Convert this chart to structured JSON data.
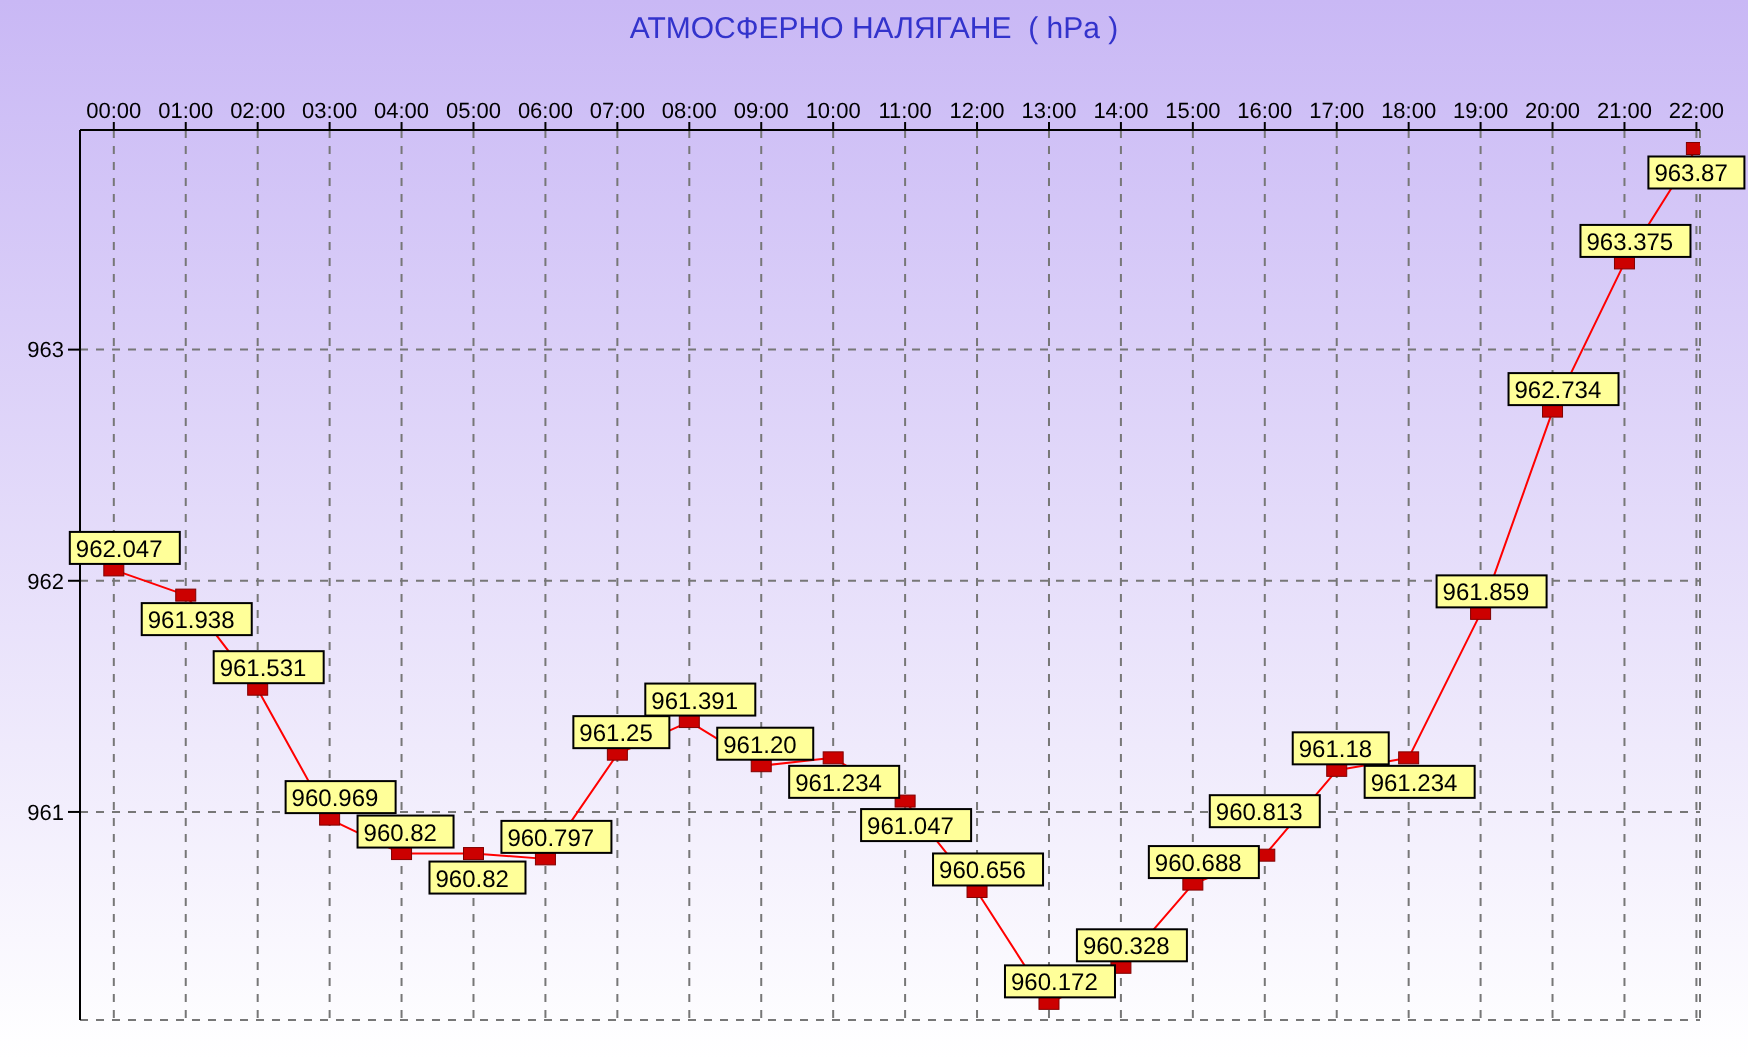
{
  "chart_data": {
    "type": "line",
    "title": "АТМОСФЕРНО НАЛЯГАНЕ  ( hPa )",
    "categories": [
      "00:00",
      "01:00",
      "02:00",
      "03:00",
      "04:00",
      "05:00",
      "06:00",
      "07:00",
      "08:00",
      "09:00",
      "10:00",
      "11:00",
      "12:00",
      "13:00",
      "14:00",
      "15:00",
      "16:00",
      "17:00",
      "18:00",
      "19:00",
      "20:00",
      "21:00",
      "22:00"
    ],
    "series": [
      {
        "color": "#ff0000",
        "values": [
          962.047,
          961.938,
          961.531,
          960.969,
          960.82,
          960.82,
          960.797,
          961.25,
          961.391,
          961.2,
          961.234,
          961.047,
          960.656,
          960.172,
          960.328,
          960.688,
          960.813,
          961.18,
          961.234,
          961.859,
          962.734,
          963.375,
          963.87
        ],
        "value_labels": [
          "962.047",
          "961.938",
          "961.531",
          "960.969",
          "960.82",
          "960.82",
          "960.797",
          "961.25",
          "961.391",
          "961.20",
          "961.234",
          "961.047",
          "960.656",
          "960.172",
          "960.328",
          "960.688",
          "960.813",
          "961.18",
          "961.234",
          "961.859",
          "962.734",
          "963.375",
          "963.87"
        ]
      }
    ],
    "ylim": [
      960.1,
      963.95
    ],
    "yticks": [
      961,
      962,
      963
    ],
    "grid": true,
    "marker": "square",
    "line_style": "solid",
    "legend": false
  }
}
